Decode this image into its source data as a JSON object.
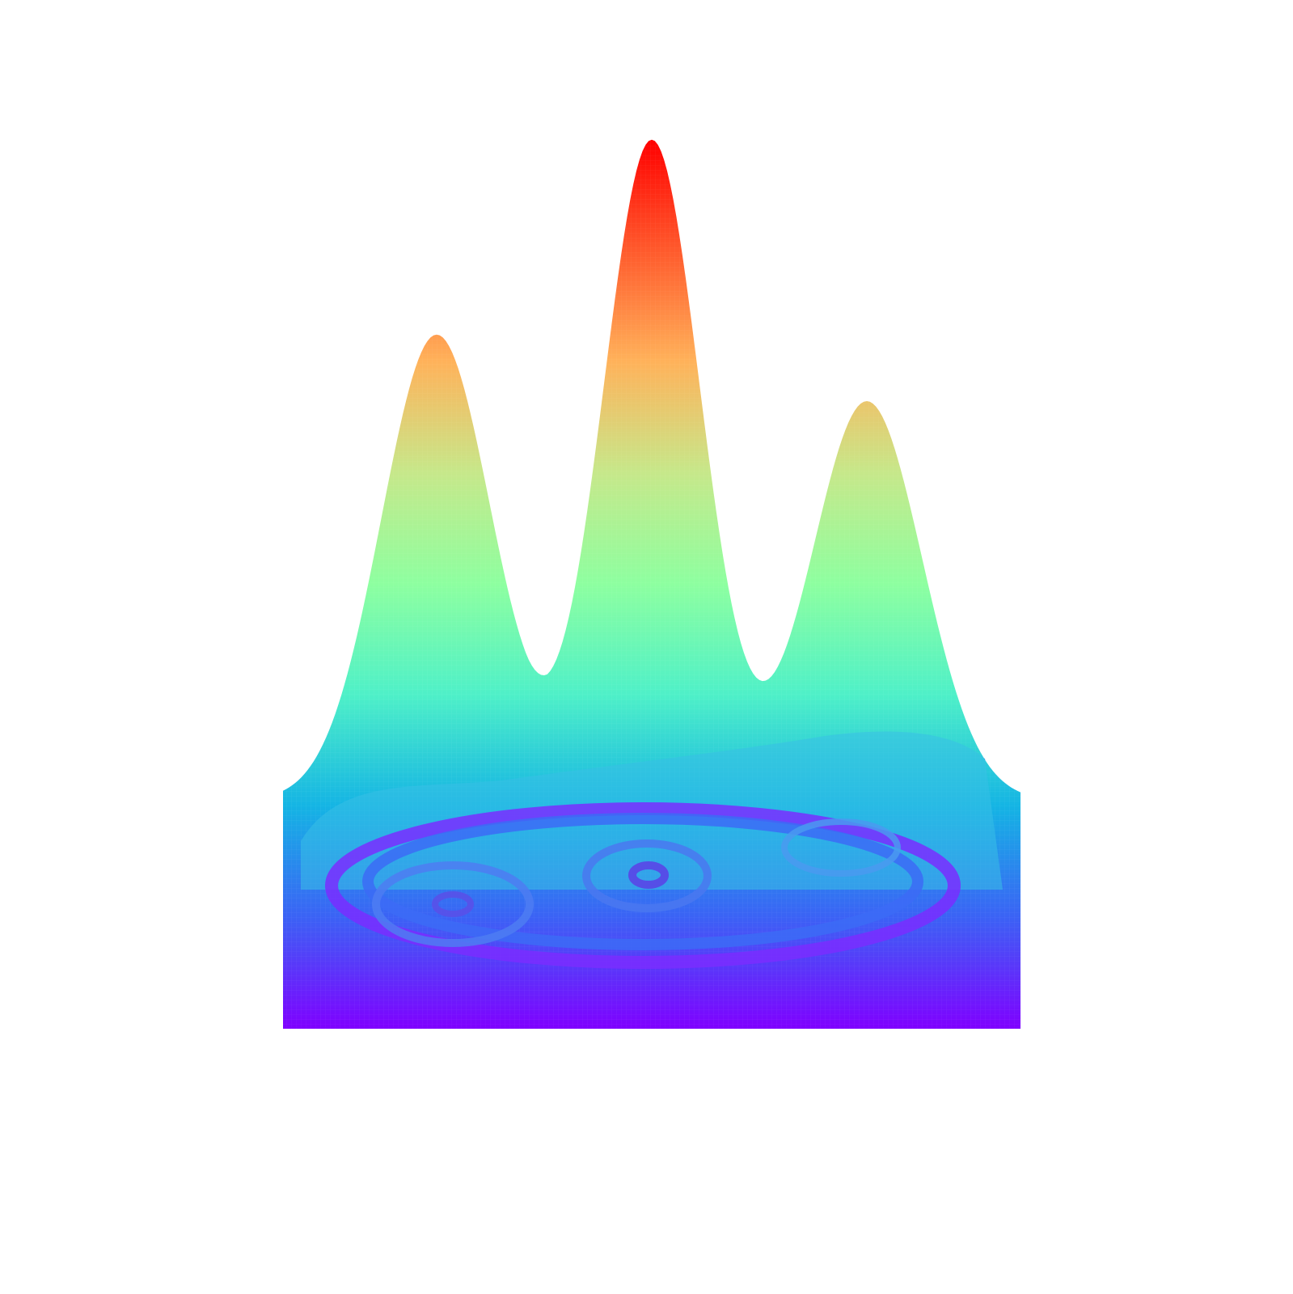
{
  "chart_data": {
    "type": "surface",
    "title": "",
    "xlabel": "",
    "ylabel": "",
    "zlabel": "",
    "colorscale": "rainbow",
    "colors": [
      "#7f00ff",
      "#3b62f5",
      "#14b4e4",
      "#4ef0c8",
      "#8dffa0",
      "#c6e88a",
      "#ffb25a",
      "#ff5a2c",
      "#ff0000"
    ],
    "axes_visible": false,
    "grid": false,
    "legend": "none",
    "projected_contours": true,
    "x_range": [
      -3,
      3
    ],
    "y_range": [
      -2,
      2
    ],
    "z_range": [
      0,
      1
    ],
    "peaks": [
      {
        "x": -1.75,
        "y": 0.1,
        "height": 0.7,
        "spread": 0.45
      },
      {
        "x": 0.0,
        "y": 0.35,
        "height": 1.0,
        "spread": 0.4
      },
      {
        "x": 1.75,
        "y": 0.3,
        "height": 0.6,
        "spread": 0.45
      }
    ],
    "contour_levels": [
      0.05,
      0.15,
      0.35,
      0.55,
      0.8
    ]
  }
}
